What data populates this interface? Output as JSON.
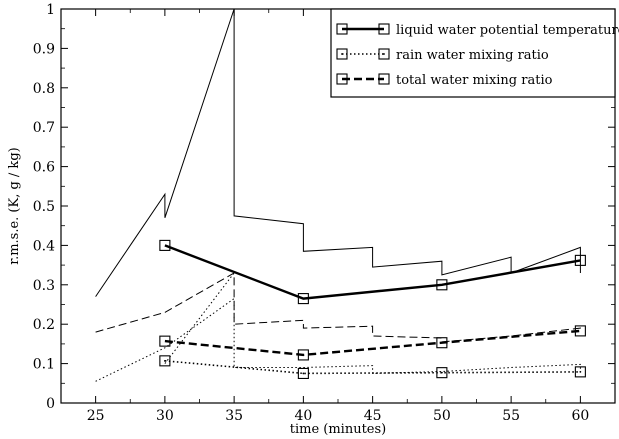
{
  "chart_data": {
    "type": "line",
    "xlabel": "time (minutes)",
    "ylabel": "r.m.s.e. (K,   g / kg)",
    "xlim": [
      22.5,
      62.5
    ],
    "ylim": [
      0,
      1
    ],
    "x_ticks": [
      25,
      30,
      35,
      40,
      45,
      50,
      55,
      60
    ],
    "y_ticks": [
      0,
      0.1,
      0.2,
      0.3,
      0.4,
      0.5,
      0.6,
      0.7,
      0.8,
      0.9,
      1
    ],
    "x_tick_labels": [
      "25",
      "30",
      "35",
      "40",
      "45",
      "50",
      "55",
      "60"
    ],
    "y_tick_labels": [
      "0",
      "0.1",
      "0.2",
      "0.3",
      "0.4",
      "0.5",
      "0.6",
      "0.7",
      "0.8",
      "0.9",
      "1"
    ],
    "legend_position": "top-right",
    "grid": false,
    "series": [
      {
        "name": "liquid water potential temperature",
        "style": "solid",
        "markers": "square",
        "points": [
          [
            30,
            0.4
          ],
          [
            40,
            0.265
          ],
          [
            50,
            0.3
          ],
          [
            60,
            0.362
          ]
        ]
      },
      {
        "name": "rain water mixing ratio",
        "style": "dotted",
        "markers": "square",
        "points": [
          [
            30,
            0.107
          ],
          [
            40,
            0.075
          ],
          [
            50,
            0.077
          ],
          [
            60,
            0.079
          ]
        ]
      },
      {
        "name": "total water mixing ratio",
        "style": "dashed",
        "markers": "square",
        "points": [
          [
            30,
            0.157
          ],
          [
            40,
            0.122
          ],
          [
            50,
            0.153
          ],
          [
            60,
            0.183
          ]
        ]
      }
    ],
    "background_traces": [
      {
        "style": "solid",
        "points": [
          [
            25,
            0.27
          ],
          [
            30,
            0.53
          ],
          [
            30,
            0.47
          ],
          [
            35,
            1.0
          ],
          [
            35,
            0.475
          ],
          [
            40,
            0.455
          ],
          [
            40,
            0.385
          ],
          [
            45,
            0.395
          ],
          [
            45,
            0.345
          ],
          [
            50,
            0.36
          ],
          [
            50,
            0.325
          ],
          [
            55,
            0.37
          ],
          [
            55,
            0.33
          ],
          [
            60,
            0.395
          ],
          [
            60,
            0.33
          ]
        ]
      },
      {
        "style": "dashed",
        "points": [
          [
            25,
            0.18
          ],
          [
            30,
            0.23
          ],
          [
            35,
            0.33
          ],
          [
            35,
            0.2
          ],
          [
            40,
            0.21
          ],
          [
            40,
            0.19
          ],
          [
            45,
            0.195
          ],
          [
            45,
            0.17
          ],
          [
            50,
            0.165
          ],
          [
            50,
            0.155
          ],
          [
            55,
            0.17
          ],
          [
            60,
            0.19
          ],
          [
            60,
            0.18
          ]
        ]
      },
      {
        "style": "dotted",
        "points": [
          [
            25,
            0.055
          ],
          [
            30,
            0.14
          ],
          [
            35,
            0.265
          ],
          [
            35,
            0.09
          ],
          [
            40,
            0.09
          ],
          [
            45,
            0.095
          ],
          [
            45,
            0.075
          ],
          [
            50,
            0.08
          ],
          [
            55,
            0.09
          ],
          [
            60,
            0.098
          ],
          [
            60,
            0.078
          ]
        ]
      },
      {
        "style": "dotted",
        "points": [
          [
            30,
            0.1
          ],
          [
            35,
            0.33
          ]
        ]
      }
    ]
  }
}
